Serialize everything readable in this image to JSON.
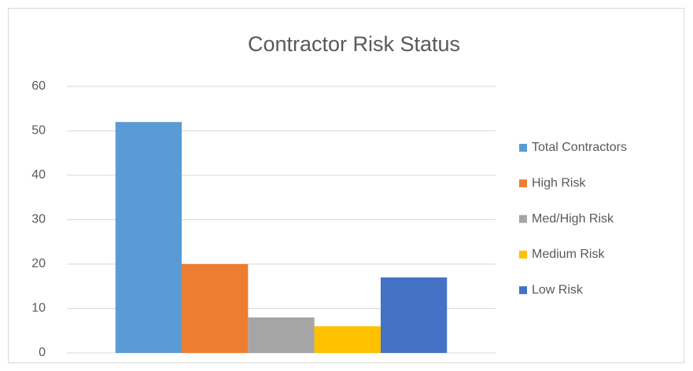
{
  "chart_data": {
    "type": "bar",
    "title": "Contractor Risk Status",
    "categories": [
      null
    ],
    "series": [
      {
        "name": "Total Contractors",
        "color": "#5b9bd5",
        "values": [
          52
        ]
      },
      {
        "name": "High Risk",
        "color": "#ed7d31",
        "values": [
          20
        ]
      },
      {
        "name": "Med/High Risk",
        "color": "#a5a5a5",
        "values": [
          8
        ]
      },
      {
        "name": "Medium Risk",
        "color": "#ffc000",
        "values": [
          6
        ]
      },
      {
        "name": "Low Risk",
        "color": "#4472c4",
        "values": [
          17
        ]
      }
    ],
    "ylim": [
      0,
      60
    ],
    "yticks": [
      0,
      10,
      20,
      30,
      40,
      50,
      60
    ],
    "grid": true,
    "legend": "right"
  }
}
